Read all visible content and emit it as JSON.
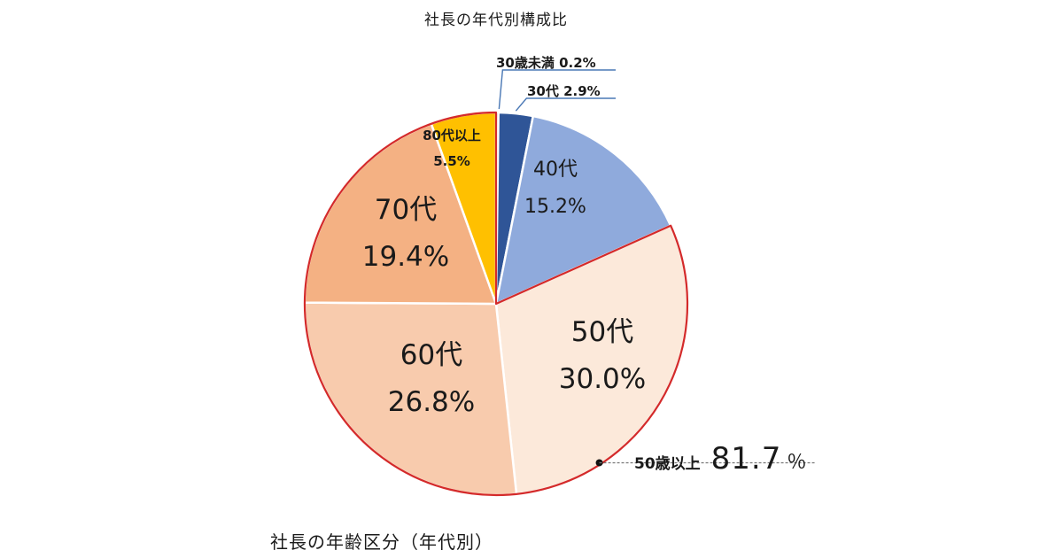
{
  "title": "社長の年代別構成比",
  "caption": "社長の年齢区分（年代別）",
  "chart_data": {
    "type": "pie",
    "title": "社長の年代別構成比",
    "slices": [
      {
        "label": "30歳未満",
        "value": 0.2,
        "value_text": "0.2%",
        "color": "#1f3864"
      },
      {
        "label": "30代",
        "value": 2.9,
        "value_text": "2.9%",
        "color": "#2f5597"
      },
      {
        "label": "40代",
        "value": 15.2,
        "value_text": "15.2%",
        "color": "#8faadc"
      },
      {
        "label": "50代",
        "value": 30.0,
        "value_text": "30.0%",
        "color": "#fce9da"
      },
      {
        "label": "60代",
        "value": 26.8,
        "value_text": "26.8%",
        "color": "#f8cbad"
      },
      {
        "label": "70代",
        "value": 19.4,
        "value_text": "19.4%",
        "color": "#f4b183"
      },
      {
        "label": "80代以上",
        "value": 5.5,
        "value_text": "5.5%",
        "color": "#ffc000"
      }
    ],
    "callouts": {
      "under30": "30歳未満 0.2%",
      "thirties": "30代 2.9%"
    },
    "summary": {
      "label": "50歳以上",
      "value": "81.7",
      "unit": "％",
      "highlight_color": "#d42a2a"
    }
  }
}
